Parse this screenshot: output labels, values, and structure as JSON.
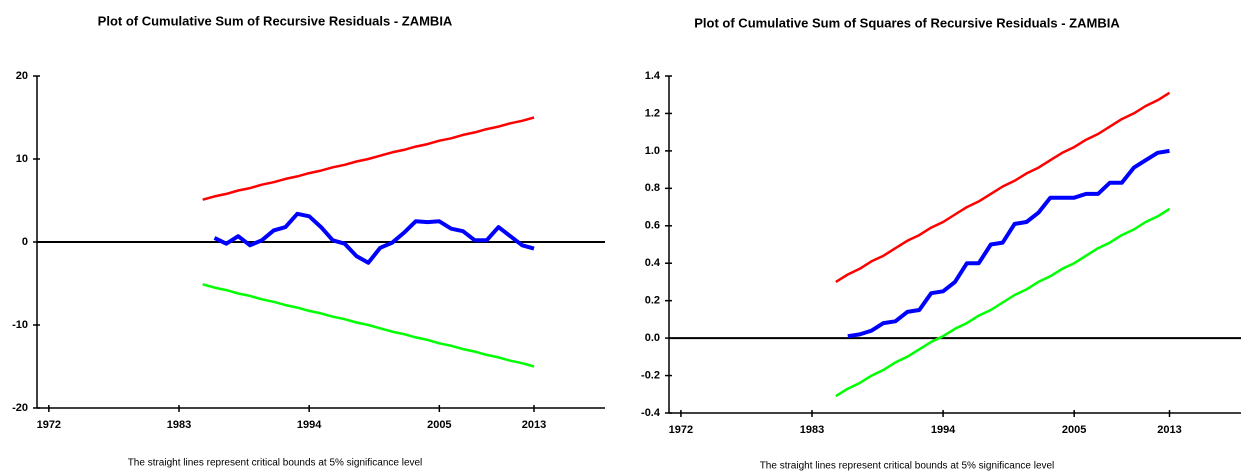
{
  "chart_data": [
    {
      "type": "line",
      "title": "Plot of Cumulative Sum of Recursive Residuals - ZAMBIA",
      "note": "The straight lines represent critical bounds at 5% significance level",
      "x": [
        1985,
        1986,
        1987,
        1988,
        1989,
        1990,
        1991,
        1992,
        1993,
        1994,
        1995,
        1996,
        1997,
        1998,
        1999,
        2000,
        2001,
        2002,
        2003,
        2004,
        2005,
        2006,
        2007,
        2008,
        2009,
        2010,
        2011,
        2012,
        2013
      ],
      "xlim": [
        1971,
        2019
      ],
      "xticks": [
        1972,
        1983,
        1994,
        2005,
        2013
      ],
      "ylim": [
        -20,
        20
      ],
      "yticks": [
        -20,
        -10,
        0,
        10,
        20
      ],
      "series": [
        {
          "color": "#0000ff",
          "values": [
            null,
            0.5,
            -0.2,
            0.7,
            -0.4,
            0.2,
            1.4,
            1.8,
            3.4,
            3.1,
            1.8,
            0.2,
            -0.2,
            -1.7,
            -2.5,
            -0.7,
            -0.1,
            1.1,
            2.5,
            2.4,
            2.5,
            1.6,
            1.3,
            0.2,
            0.2,
            1.8,
            0.7,
            -0.4,
            -0.8
          ]
        },
        {
          "color": "#ff0000",
          "values": [
            5.1,
            5.5,
            5.8,
            6.2,
            6.5,
            6.9,
            7.2,
            7.6,
            7.9,
            8.3,
            8.6,
            9.0,
            9.3,
            9.7,
            10.0,
            10.4,
            10.8,
            11.1,
            11.5,
            11.8,
            12.2,
            12.5,
            12.9,
            13.2,
            13.6,
            13.9,
            14.3,
            14.6,
            15.0
          ]
        },
        {
          "color": "#00ff00",
          "values": [
            -5.1,
            -5.5,
            -5.8,
            -6.2,
            -6.5,
            -6.9,
            -7.2,
            -7.6,
            -7.9,
            -8.3,
            -8.6,
            -9.0,
            -9.3,
            -9.7,
            -10.0,
            -10.4,
            -10.8,
            -11.1,
            -11.5,
            -11.8,
            -12.2,
            -12.5,
            -12.9,
            -13.2,
            -13.6,
            -13.9,
            -14.3,
            -14.6,
            -15.0
          ]
        }
      ]
    },
    {
      "type": "line",
      "title": "Plot of Cumulative Sum of Squares of Recursive Residuals - ZAMBIA",
      "note": "The straight lines represent critical bounds at 5% significance level",
      "x": [
        1985,
        1986,
        1987,
        1988,
        1989,
        1990,
        1991,
        1992,
        1993,
        1994,
        1995,
        1996,
        1997,
        1998,
        1999,
        2000,
        2001,
        2002,
        2003,
        2004,
        2005,
        2006,
        2007,
        2008,
        2009,
        2010,
        2011,
        2012,
        2013
      ],
      "xlim": [
        1971,
        2019
      ],
      "xticks": [
        1972,
        1983,
        1994,
        2005,
        2013
      ],
      "ylim": [
        -0.4,
        1.4
      ],
      "yticks": [
        -0.4,
        -0.2,
        {
          "value": 0,
          "label": "0.0"
        },
        0.2,
        0.4,
        0.6,
        0.8,
        {
          "value": 1,
          "label": "1.0"
        },
        1.2,
        1.4
      ],
      "series": [
        {
          "color": "#0000ff",
          "values": [
            null,
            0.01,
            0.02,
            0.04,
            0.08,
            0.09,
            0.14,
            0.15,
            0.24,
            0.25,
            0.3,
            0.4,
            0.4,
            0.5,
            0.51,
            0.61,
            0.62,
            0.67,
            0.75,
            0.75,
            0.75,
            0.77,
            0.77,
            0.83,
            0.83,
            0.91,
            0.95,
            0.99,
            1.0
          ]
        },
        {
          "color": "#ff0000",
          "values": [
            0.3,
            0.34,
            0.37,
            0.41,
            0.44,
            0.48,
            0.52,
            0.55,
            0.59,
            0.62,
            0.66,
            0.7,
            0.73,
            0.77,
            0.81,
            0.84,
            0.88,
            0.91,
            0.95,
            0.99,
            1.02,
            1.06,
            1.09,
            1.13,
            1.17,
            1.2,
            1.24,
            1.27,
            1.31
          ]
        },
        {
          "color": "#00ff00",
          "values": [
            -0.31,
            -0.27,
            -0.24,
            -0.2,
            -0.17,
            -0.13,
            -0.1,
            -0.06,
            -0.02,
            0.01,
            0.05,
            0.08,
            0.12,
            0.15,
            0.19,
            0.23,
            0.26,
            0.3,
            0.33,
            0.37,
            0.4,
            0.44,
            0.48,
            0.51,
            0.55,
            0.58,
            0.62,
            0.65,
            0.69
          ]
        }
      ]
    }
  ]
}
